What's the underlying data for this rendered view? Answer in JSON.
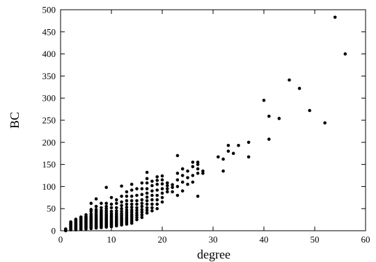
{
  "chart_data": {
    "type": "scatter",
    "xlabel": "degree",
    "ylabel": "BC",
    "xlim": [
      0,
      60
    ],
    "ylim": [
      0,
      500
    ],
    "x_ticks": [
      0,
      10,
      20,
      30,
      40,
      50,
      60
    ],
    "y_ticks": [
      0,
      50,
      100,
      150,
      200,
      250,
      300,
      350,
      400,
      450,
      500
    ],
    "grid": false,
    "legend": "none",
    "marker_color": "#000000",
    "points": [
      [
        1,
        0
      ],
      [
        1,
        1
      ],
      [
        1,
        2
      ],
      [
        1,
        3
      ],
      [
        1,
        4
      ],
      [
        2,
        2
      ],
      [
        2,
        4
      ],
      [
        2,
        6
      ],
      [
        2,
        8
      ],
      [
        2,
        10
      ],
      [
        2,
        12
      ],
      [
        2,
        14
      ],
      [
        2,
        16
      ],
      [
        2,
        18
      ],
      [
        2,
        20
      ],
      [
        3,
        2
      ],
      [
        3,
        4
      ],
      [
        3,
        6
      ],
      [
        3,
        8
      ],
      [
        3,
        10
      ],
      [
        3,
        12
      ],
      [
        3,
        14
      ],
      [
        3,
        16
      ],
      [
        3,
        18
      ],
      [
        3,
        20
      ],
      [
        3,
        22
      ],
      [
        3,
        24
      ],
      [
        3,
        26
      ],
      [
        4,
        3
      ],
      [
        4,
        5
      ],
      [
        4,
        7
      ],
      [
        4,
        9
      ],
      [
        4,
        11
      ],
      [
        4,
        13
      ],
      [
        4,
        15
      ],
      [
        4,
        17
      ],
      [
        4,
        19
      ],
      [
        4,
        21
      ],
      [
        4,
        23
      ],
      [
        4,
        25
      ],
      [
        4,
        27
      ],
      [
        4,
        29
      ],
      [
        4,
        31
      ],
      [
        5,
        4
      ],
      [
        5,
        6
      ],
      [
        5,
        8
      ],
      [
        5,
        10
      ],
      [
        5,
        12
      ],
      [
        5,
        14
      ],
      [
        5,
        16
      ],
      [
        5,
        18
      ],
      [
        5,
        20
      ],
      [
        5,
        22
      ],
      [
        5,
        24
      ],
      [
        5,
        26
      ],
      [
        5,
        28
      ],
      [
        5,
        30
      ],
      [
        5,
        32
      ],
      [
        5,
        36
      ],
      [
        6,
        5
      ],
      [
        6,
        7
      ],
      [
        6,
        9
      ],
      [
        6,
        11
      ],
      [
        6,
        13
      ],
      [
        6,
        15
      ],
      [
        6,
        17
      ],
      [
        6,
        19
      ],
      [
        6,
        21
      ],
      [
        6,
        23
      ],
      [
        6,
        25
      ],
      [
        6,
        27
      ],
      [
        6,
        29
      ],
      [
        6,
        31
      ],
      [
        6,
        34
      ],
      [
        6,
        38
      ],
      [
        6,
        44
      ],
      [
        6,
        48
      ],
      [
        6,
        62
      ],
      [
        7,
        6
      ],
      [
        7,
        8
      ],
      [
        7,
        10
      ],
      [
        7,
        12
      ],
      [
        7,
        14
      ],
      [
        7,
        16
      ],
      [
        7,
        18
      ],
      [
        7,
        20
      ],
      [
        7,
        22
      ],
      [
        7,
        24
      ],
      [
        7,
        26
      ],
      [
        7,
        28
      ],
      [
        7,
        30
      ],
      [
        7,
        33
      ],
      [
        7,
        36
      ],
      [
        7,
        40
      ],
      [
        7,
        44
      ],
      [
        7,
        48
      ],
      [
        7,
        55
      ],
      [
        7,
        72
      ],
      [
        8,
        7
      ],
      [
        8,
        9
      ],
      [
        8,
        11
      ],
      [
        8,
        13
      ],
      [
        8,
        15
      ],
      [
        8,
        17
      ],
      [
        8,
        19
      ],
      [
        8,
        21
      ],
      [
        8,
        23
      ],
      [
        8,
        25
      ],
      [
        8,
        27
      ],
      [
        8,
        30
      ],
      [
        8,
        33
      ],
      [
        8,
        36
      ],
      [
        8,
        39
      ],
      [
        8,
        42
      ],
      [
        8,
        46
      ],
      [
        8,
        52
      ],
      [
        8,
        62
      ],
      [
        9,
        8
      ],
      [
        9,
        10
      ],
      [
        9,
        12
      ],
      [
        9,
        14
      ],
      [
        9,
        16
      ],
      [
        9,
        18
      ],
      [
        9,
        20
      ],
      [
        9,
        22
      ],
      [
        9,
        24
      ],
      [
        9,
        26
      ],
      [
        9,
        28
      ],
      [
        9,
        31
      ],
      [
        9,
        34
      ],
      [
        9,
        37
      ],
      [
        9,
        41
      ],
      [
        9,
        45
      ],
      [
        9,
        50
      ],
      [
        9,
        55
      ],
      [
        9,
        62
      ],
      [
        9,
        98
      ],
      [
        10,
        9
      ],
      [
        10,
        11
      ],
      [
        10,
        13
      ],
      [
        10,
        15
      ],
      [
        10,
        17
      ],
      [
        10,
        19
      ],
      [
        10,
        21
      ],
      [
        10,
        23
      ],
      [
        10,
        26
      ],
      [
        10,
        29
      ],
      [
        10,
        32
      ],
      [
        10,
        35
      ],
      [
        10,
        39
      ],
      [
        10,
        44
      ],
      [
        10,
        52
      ],
      [
        10,
        60
      ],
      [
        10,
        75
      ],
      [
        11,
        11
      ],
      [
        11,
        14
      ],
      [
        11,
        17
      ],
      [
        11,
        20
      ],
      [
        11,
        23
      ],
      [
        11,
        26
      ],
      [
        11,
        29
      ],
      [
        11,
        32
      ],
      [
        11,
        36
      ],
      [
        11,
        40
      ],
      [
        11,
        45
      ],
      [
        11,
        52
      ],
      [
        11,
        62
      ],
      [
        11,
        70
      ],
      [
        12,
        13
      ],
      [
        12,
        16
      ],
      [
        12,
        19
      ],
      [
        12,
        22
      ],
      [
        12,
        25
      ],
      [
        12,
        28
      ],
      [
        12,
        31
      ],
      [
        12,
        35
      ],
      [
        12,
        39
      ],
      [
        12,
        44
      ],
      [
        12,
        50
      ],
      [
        12,
        57
      ],
      [
        12,
        65
      ],
      [
        12,
        78
      ],
      [
        12,
        101
      ],
      [
        13,
        15
      ],
      [
        13,
        18
      ],
      [
        13,
        21
      ],
      [
        13,
        24
      ],
      [
        13,
        27
      ],
      [
        13,
        30
      ],
      [
        13,
        34
      ],
      [
        13,
        38
      ],
      [
        13,
        42
      ],
      [
        13,
        47
      ],
      [
        13,
        53
      ],
      [
        13,
        60
      ],
      [
        13,
        68
      ],
      [
        13,
        78
      ],
      [
        13,
        88
      ],
      [
        14,
        17
      ],
      [
        14,
        21
      ],
      [
        14,
        25
      ],
      [
        14,
        29
      ],
      [
        14,
        33
      ],
      [
        14,
        37
      ],
      [
        14,
        42
      ],
      [
        14,
        47
      ],
      [
        14,
        53
      ],
      [
        14,
        60
      ],
      [
        14,
        68
      ],
      [
        14,
        78
      ],
      [
        14,
        92
      ],
      [
        14,
        105
      ],
      [
        15,
        25
      ],
      [
        15,
        30
      ],
      [
        15,
        35
      ],
      [
        15,
        40
      ],
      [
        15,
        46
      ],
      [
        15,
        52
      ],
      [
        15,
        60
      ],
      [
        15,
        68
      ],
      [
        15,
        80
      ],
      [
        15,
        95
      ],
      [
        16,
        30
      ],
      [
        16,
        36
      ],
      [
        16,
        42
      ],
      [
        16,
        48
      ],
      [
        16,
        55
      ],
      [
        16,
        62
      ],
      [
        16,
        70
      ],
      [
        16,
        82
      ],
      [
        16,
        95
      ],
      [
        16,
        108
      ],
      [
        17,
        40
      ],
      [
        17,
        46
      ],
      [
        17,
        52
      ],
      [
        17,
        60
      ],
      [
        17,
        68
      ],
      [
        17,
        76
      ],
      [
        17,
        85
      ],
      [
        17,
        95
      ],
      [
        17,
        108
      ],
      [
        17,
        118
      ],
      [
        17,
        132
      ],
      [
        18,
        45
      ],
      [
        18,
        52
      ],
      [
        18,
        60
      ],
      [
        18,
        70
      ],
      [
        18,
        80
      ],
      [
        18,
        90
      ],
      [
        18,
        102
      ],
      [
        18,
        112
      ],
      [
        19,
        50
      ],
      [
        19,
        60
      ],
      [
        19,
        70
      ],
      [
        19,
        80
      ],
      [
        19,
        92
      ],
      [
        19,
        105
      ],
      [
        19,
        114
      ],
      [
        19,
        122
      ],
      [
        20,
        65
      ],
      [
        20,
        75
      ],
      [
        20,
        85
      ],
      [
        20,
        95
      ],
      [
        20,
        106
      ],
      [
        20,
        115
      ],
      [
        20,
        124
      ],
      [
        21,
        88
      ],
      [
        21,
        95
      ],
      [
        21,
        102
      ],
      [
        21,
        108
      ],
      [
        22,
        88
      ],
      [
        22,
        98
      ],
      [
        22,
        104
      ],
      [
        23,
        80
      ],
      [
        23,
        100
      ],
      [
        23,
        115
      ],
      [
        23,
        130
      ],
      [
        23,
        170
      ],
      [
        24,
        90
      ],
      [
        24,
        110
      ],
      [
        24,
        125
      ],
      [
        24,
        140
      ],
      [
        25,
        105
      ],
      [
        25,
        120
      ],
      [
        25,
        135
      ],
      [
        26,
        110
      ],
      [
        26,
        125
      ],
      [
        26,
        145
      ],
      [
        26,
        155
      ],
      [
        27,
        78
      ],
      [
        27,
        130
      ],
      [
        27,
        140
      ],
      [
        27,
        150
      ],
      [
        27,
        155
      ],
      [
        28,
        130
      ],
      [
        28,
        135
      ],
      [
        31,
        167
      ],
      [
        32,
        135
      ],
      [
        32,
        162
      ],
      [
        33,
        180
      ],
      [
        33,
        193
      ],
      [
        34,
        175
      ],
      [
        35,
        193
      ],
      [
        37,
        167
      ],
      [
        37,
        200
      ],
      [
        40,
        295
      ],
      [
        41,
        207
      ],
      [
        41,
        259
      ],
      [
        43,
        254
      ],
      [
        45,
        341
      ],
      [
        47,
        322
      ],
      [
        49,
        272
      ],
      [
        52,
        244
      ],
      [
        54,
        483
      ],
      [
        56,
        400
      ]
    ]
  }
}
